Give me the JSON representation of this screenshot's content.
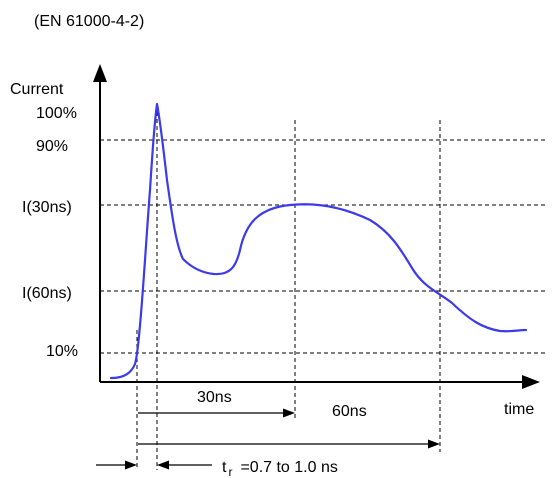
{
  "standard": "(EN 61000-4-2)",
  "axes": {
    "y_label": "Current",
    "x_label": "time"
  },
  "levels": {
    "peak": "100%",
    "ninety": "90%",
    "i30": "I(30ns)",
    "i60": "I(60ns)",
    "ten": "10%"
  },
  "intervals": {
    "t30": "30ns",
    "t60": "60ns"
  },
  "rise_time": {
    "symbol": "t",
    "subscript": "r",
    "text": "=0.7 to 1.0 ns"
  },
  "colors": {
    "waveform": "#3b3bea"
  }
}
